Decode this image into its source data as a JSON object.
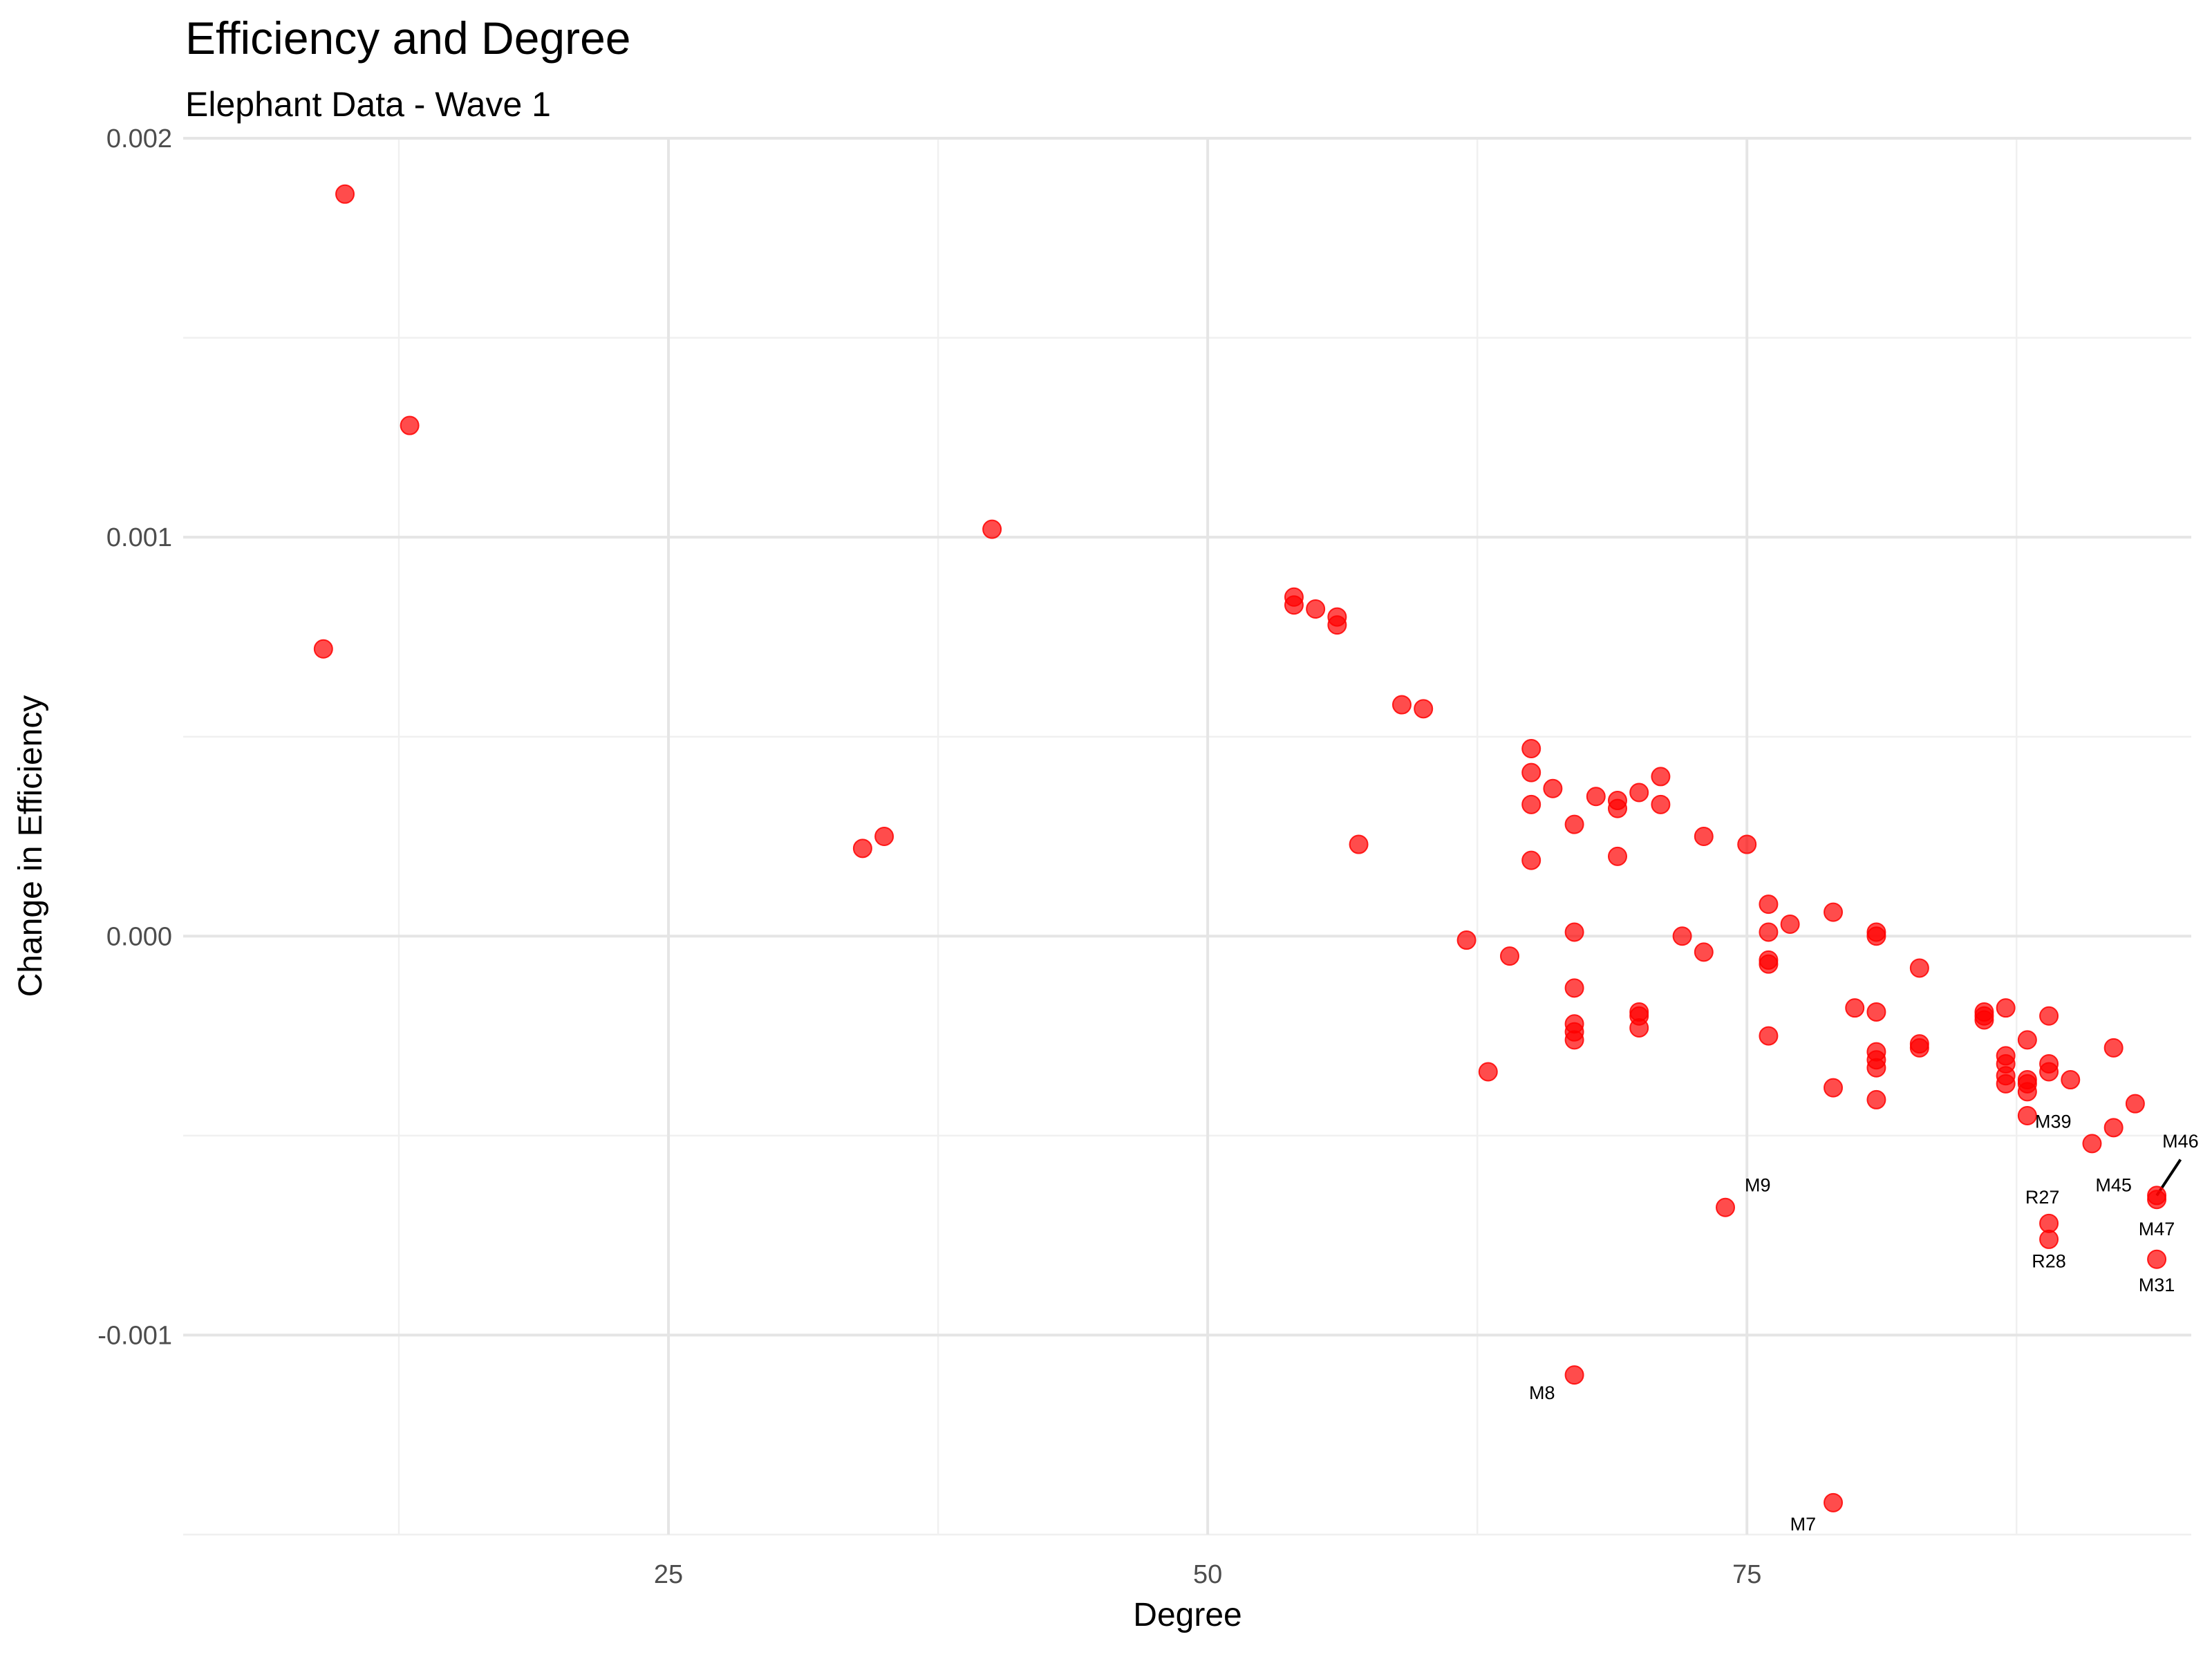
{
  "chart_data": {
    "type": "scatter",
    "title": "Efficiency and Degree",
    "subtitle": "Elephant Data - Wave 1",
    "xlabel": "Degree",
    "ylabel": "Change in Efficiency",
    "xlim": [
      2.5,
      95.6
    ],
    "ylim": [
      -0.0015,
      0.002
    ],
    "x_ticks": [
      25,
      50,
      75
    ],
    "x_tick_labels": [
      "25",
      "50",
      "75"
    ],
    "y_ticks": [
      0.001,
      0.0,
      -0.001,
      0.002
    ],
    "y_tick_labels": [
      "0.001",
      "0.000",
      "-0.001",
      "0.002"
    ],
    "grid": true,
    "point_color": "#ff0000",
    "points": [
      {
        "x": 10,
        "y": 0.00186
      },
      {
        "x": 13,
        "y": 0.00128
      },
      {
        "x": 9,
        "y": 0.00072
      },
      {
        "x": 40,
        "y": 0.00102
      },
      {
        "x": 34,
        "y": 0.00022
      },
      {
        "x": 35,
        "y": 0.00025
      },
      {
        "x": 54,
        "y": 0.00085
      },
      {
        "x": 54,
        "y": 0.00083
      },
      {
        "x": 55,
        "y": 0.00082
      },
      {
        "x": 56,
        "y": 0.0008
      },
      {
        "x": 56,
        "y": 0.00078
      },
      {
        "x": 59,
        "y": 0.00058
      },
      {
        "x": 60,
        "y": 0.00057
      },
      {
        "x": 57,
        "y": 0.00023
      },
      {
        "x": 62,
        "y": -1e-05
      },
      {
        "x": 63,
        "y": -0.00034
      },
      {
        "x": 64,
        "y": -5e-05
      },
      {
        "x": 65,
        "y": 0.00047
      },
      {
        "x": 65,
        "y": 0.00041
      },
      {
        "x": 66,
        "y": 0.00037
      },
      {
        "x": 65,
        "y": 0.00033
      },
      {
        "x": 67,
        "y": 0.00028
      },
      {
        "x": 65,
        "y": 0.00019
      },
      {
        "x": 67,
        "y": 1e-05
      },
      {
        "x": 67,
        "y": -0.00013
      },
      {
        "x": 67,
        "y": -0.00022
      },
      {
        "x": 67,
        "y": -0.00024
      },
      {
        "x": 67,
        "y": -0.00026
      },
      {
        "x": 67,
        "y": -0.0011
      },
      {
        "x": 68,
        "y": 0.00035
      },
      {
        "x": 69,
        "y": 0.00034
      },
      {
        "x": 69,
        "y": 0.00032
      },
      {
        "x": 69,
        "y": 0.0002
      },
      {
        "x": 70,
        "y": 0.00036
      },
      {
        "x": 70,
        "y": -0.00019
      },
      {
        "x": 70,
        "y": -0.0002
      },
      {
        "x": 70,
        "y": -0.00023
      },
      {
        "x": 71,
        "y": 0.0004
      },
      {
        "x": 71,
        "y": 0.00033
      },
      {
        "x": 72,
        "y": 0.0
      },
      {
        "x": 73,
        "y": -4e-05
      },
      {
        "x": 73,
        "y": 0.00025
      },
      {
        "x": 74,
        "y": -0.00068
      },
      {
        "x": 75,
        "y": 0.00023
      },
      {
        "x": 76,
        "y": 8e-05
      },
      {
        "x": 76,
        "y": 1e-05
      },
      {
        "x": 76,
        "y": -6e-05
      },
      {
        "x": 76,
        "y": -7e-05
      },
      {
        "x": 76,
        "y": -0.00025
      },
      {
        "x": 77,
        "y": 3e-05
      },
      {
        "x": 79,
        "y": 6e-05
      },
      {
        "x": 79,
        "y": -0.00038
      },
      {
        "x": 79,
        "y": -0.00142
      },
      {
        "x": 80,
        "y": -0.00018
      },
      {
        "x": 81,
        "y": 1e-05
      },
      {
        "x": 81,
        "y": 0.0
      },
      {
        "x": 81,
        "y": -0.00019
      },
      {
        "x": 81,
        "y": -0.00029
      },
      {
        "x": 81,
        "y": -0.00031
      },
      {
        "x": 81,
        "y": -0.00033
      },
      {
        "x": 81,
        "y": -0.00041
      },
      {
        "x": 83,
        "y": -8e-05
      },
      {
        "x": 83,
        "y": -0.00027
      },
      {
        "x": 83,
        "y": -0.00028
      },
      {
        "x": 86,
        "y": -0.00019
      },
      {
        "x": 86,
        "y": -0.0002
      },
      {
        "x": 86,
        "y": -0.00021
      },
      {
        "x": 87,
        "y": -0.00018
      },
      {
        "x": 87,
        "y": -0.0003
      },
      {
        "x": 87,
        "y": -0.00032
      },
      {
        "x": 87,
        "y": -0.00035
      },
      {
        "x": 87,
        "y": -0.00037
      },
      {
        "x": 88,
        "y": -0.00026
      },
      {
        "x": 88,
        "y": -0.00036
      },
      {
        "x": 88,
        "y": -0.00037
      },
      {
        "x": 88,
        "y": -0.00039
      },
      {
        "x": 88,
        "y": -0.00045
      },
      {
        "x": 89,
        "y": -0.0002
      },
      {
        "x": 89,
        "y": -0.00032
      },
      {
        "x": 89,
        "y": -0.00034
      },
      {
        "x": 89,
        "y": -0.00072
      },
      {
        "x": 89,
        "y": -0.00076
      },
      {
        "x": 90,
        "y": -0.00036
      },
      {
        "x": 91,
        "y": -0.00052
      },
      {
        "x": 92,
        "y": -0.00028
      },
      {
        "x": 92,
        "y": -0.00048
      },
      {
        "x": 93,
        "y": -0.00042
      },
      {
        "x": 94,
        "y": -0.00065
      },
      {
        "x": 94,
        "y": -0.00066
      },
      {
        "x": 94,
        "y": -0.00081
      }
    ],
    "annotations": [
      {
        "text": "M39",
        "x": 89.2,
        "y": -0.00048
      },
      {
        "text": "M46",
        "x": 95.1,
        "y": -0.00053
      },
      {
        "text": "M45",
        "x": 92.0,
        "y": -0.00064
      },
      {
        "text": "M9",
        "x": 75.5,
        "y": -0.00064
      },
      {
        "text": "R27",
        "x": 88.7,
        "y": -0.00067
      },
      {
        "text": "M47",
        "x": 94.0,
        "y": -0.00075
      },
      {
        "text": "R28",
        "x": 89.0,
        "y": -0.00083
      },
      {
        "text": "M31",
        "x": 94.0,
        "y": -0.00089
      },
      {
        "text": "M8",
        "x": 65.5,
        "y": -0.00116
      },
      {
        "text": "M7",
        "x": 77.6,
        "y": -0.00149
      }
    ],
    "annotation_segments": [
      {
        "from": [
          94.0,
          -0.00065
        ],
        "to": [
          95.1,
          -0.00056
        ]
      }
    ]
  }
}
